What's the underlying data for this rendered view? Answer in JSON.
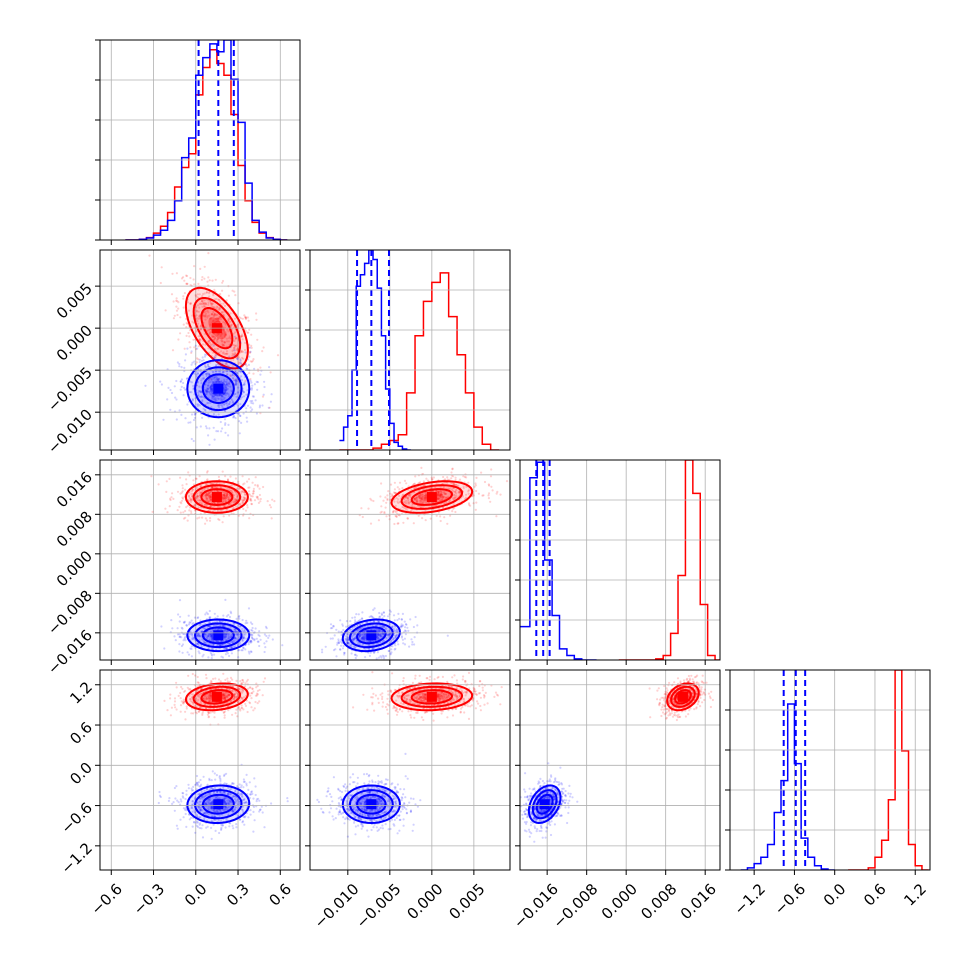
{
  "chart_data": {
    "type": "corner",
    "grid": true,
    "series": [
      {
        "color": "#ff0000",
        "params": [
          {
            "mean": 0.15,
            "sd": 0.11
          },
          {
            "mean": 0.0,
            "sd": 0.0024
          },
          {
            "mean": 0.0115,
            "sd": 0.0016
          },
          {
            "mean": 1.02,
            "sd": 0.1
          }
        ],
        "hist": [
          {
            "bins": [
              -0.5,
              -0.45,
              -0.4,
              -0.35,
              -0.3,
              -0.25,
              -0.2,
              -0.15,
              -0.1,
              -0.05,
              0.0,
              0.05,
              0.1,
              0.15,
              0.2,
              0.25,
              0.3,
              0.35,
              0.4,
              0.45,
              0.5,
              0.55,
              0.6,
              0.65
            ],
            "heights": [
              0,
              0,
              0.004,
              0.012,
              0.035,
              0.07,
              0.14,
              0.27,
              0.37,
              0.44,
              0.74,
              0.88,
              0.97,
              0.9,
              0.84,
              0.64,
              0.38,
              0.2,
              0.09,
              0.035,
              0.012,
              0.004,
              0
            ]
          },
          {
            "bins": [
              -0.011,
              -0.01,
              -0.009,
              -0.008,
              -0.007,
              -0.006,
              -0.005,
              -0.004,
              -0.003,
              -0.002,
              -0.001,
              0.0,
              0.001,
              0.002,
              0.003,
              0.004,
              0.005,
              0.006,
              0.007,
              0.008
            ],
            "heights": [
              0,
              0,
              0,
              0,
              0.01,
              0.03,
              0.05,
              0.08,
              0.3,
              0.6,
              0.78,
              0.88,
              0.93,
              0.7,
              0.5,
              0.3,
              0.12,
              0.03,
              0
            ]
          },
          {
            "bins": [
              -0.0015,
              0.0,
              0.0015,
              0.003,
              0.0045,
              0.006,
              0.0075,
              0.009,
              0.0105,
              0.012,
              0.0135,
              0.015,
              0.0165,
              0.018,
              0.0195
            ],
            "heights": [
              0,
              0,
              0,
              0,
              0,
              0.005,
              0.02,
              0.12,
              0.38,
              0.9,
              0.75,
              0.25,
              0.02,
              0
            ]
          },
          {
            "bins": [
              0.2,
              0.3,
              0.4,
              0.5,
              0.6,
              0.7,
              0.8,
              0.9,
              1.0,
              1.1,
              1.2,
              1.3,
              1.4
            ],
            "heights": [
              0,
              0,
              0,
              0.01,
              0.06,
              0.14,
              0.33,
              0.94,
              0.56,
              0.12,
              0.02,
              0
            ]
          }
        ]
      },
      {
        "color": "#0000ff",
        "params": [
          {
            "mean": 0.16,
            "sd": 0.11
          },
          {
            "mean": -0.0072,
            "sd": 0.0017
          },
          {
            "mean": -0.0165,
            "sd": 0.0016
          },
          {
            "mean": -0.58,
            "sd": 0.14
          }
        ],
        "quantiles": [
          [
            0.02,
            0.16,
            0.27
          ],
          [
            -0.0089,
            -0.0072,
            -0.0051
          ],
          [
            -0.0182,
            -0.0168,
            -0.0155
          ],
          [
            -0.76,
            -0.58,
            -0.44
          ]
        ],
        "hist": [
          {
            "bins": [
              -0.5,
              -0.45,
              -0.4,
              -0.35,
              -0.3,
              -0.25,
              -0.2,
              -0.15,
              -0.1,
              -0.05,
              0.0,
              0.05,
              0.1,
              0.15,
              0.2,
              0.25,
              0.3,
              0.35,
              0.4,
              0.45,
              0.5,
              0.55,
              0.6,
              0.65
            ],
            "heights": [
              0,
              0,
              0.003,
              0.01,
              0.025,
              0.05,
              0.1,
              0.2,
              0.42,
              0.52,
              0.84,
              0.93,
              1.0,
              0.96,
              1.02,
              0.82,
              0.6,
              0.29,
              0.1,
              0.04,
              0.01,
              0.003,
              0
            ]
          },
          {
            "bins": [
              -0.011,
              -0.0105,
              -0.01,
              -0.0095,
              -0.009,
              -0.0085,
              -0.008,
              -0.0075,
              -0.007,
              -0.0065,
              -0.006,
              -0.0055,
              -0.005,
              -0.0045,
              -0.004,
              -0.0035,
              -0.003,
              -0.0025
            ],
            "heights": [
              0.05,
              0.12,
              0.18,
              0.42,
              0.86,
              0.92,
              0.98,
              1.05,
              1.0,
              0.85,
              0.6,
              0.32,
              0.14,
              0.04,
              0.02,
              0.005,
              0
            ]
          },
          {
            "bins": [
              -0.0215,
              -0.0195,
              -0.018,
              -0.0165,
              -0.015,
              -0.0135,
              -0.012,
              -0.0105,
              -0.009,
              -0.0075,
              -0.006
            ],
            "heights": [
              0.15,
              0.82,
              0.89,
              0.45,
              0.2,
              0.05,
              0.02,
              0.005,
              0,
              0
            ]
          },
          {
            "bins": [
              -1.4,
              -1.3,
              -1.2,
              -1.1,
              -1.0,
              -0.9,
              -0.8,
              -0.7,
              -0.6,
              -0.5,
              -0.4,
              -0.3,
              -0.2,
              -0.1,
              0.0
            ],
            "heights": [
              0,
              0.01,
              0.03,
              0.06,
              0.12,
              0.27,
              0.42,
              0.78,
              0.5,
              0.15,
              0.06,
              0.02,
              0.005,
              0
            ]
          }
        ]
      }
    ],
    "axes": [
      {
        "range": [
          -0.68,
          0.74
        ],
        "ticks": [
          -0.6,
          -0.3,
          0.0,
          0.3,
          0.6
        ],
        "tick_labels": [
          "−0.6",
          "−0.3",
          "0.0",
          "0.3",
          "0.6"
        ]
      },
      {
        "range": [
          -0.0145,
          0.0093
        ],
        "ticks": [
          -0.01,
          -0.005,
          0.0,
          0.005
        ],
        "tick_labels": [
          "−0.010",
          "−0.005",
          "0.000",
          "0.005"
        ]
      },
      {
        "range": [
          -0.0215,
          0.019
        ],
        "ticks": [
          -0.016,
          -0.008,
          0.0,
          0.008,
          0.016
        ],
        "tick_labels": [
          "−0.016",
          "−0.008",
          "0.000",
          "0.008",
          "0.016"
        ]
      },
      {
        "range": [
          -1.56,
          1.42
        ],
        "ticks": [
          -1.2,
          -0.6,
          0.0,
          0.6,
          1.2
        ],
        "tick_labels": [
          "−1.2",
          "−0.6",
          "0.0",
          "0.6",
          "1.2"
        ]
      }
    ]
  }
}
